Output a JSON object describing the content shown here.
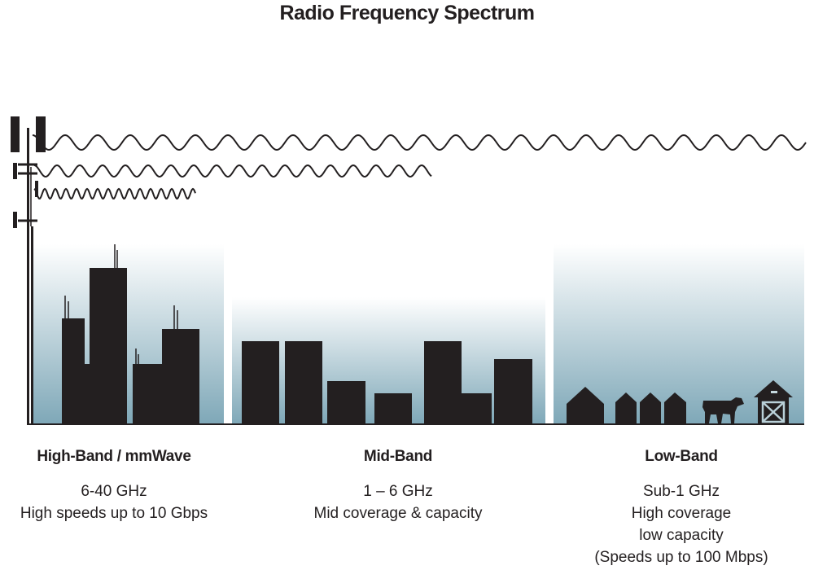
{
  "title": "Radio Frequency Spectrum",
  "colors": {
    "ink": "#231f20",
    "sky_bottom": "#7fa8b8",
    "sky_top": "#ffffff"
  },
  "bands": [
    {
      "name": "High-Band / mmWave",
      "lines": [
        "6-40 GHz",
        "High speeds up to 10 Gbps"
      ]
    },
    {
      "name": "Mid-Band",
      "lines": [
        "1 – 6 GHz",
        "Mid coverage & capacity"
      ]
    },
    {
      "name": "Low-Band",
      "lines": [
        "Sub-1 GHz",
        "High coverage",
        "low capacity",
        "(Speeds up to 100 Mbps)"
      ]
    }
  ],
  "icons": [
    "cell-tower-icon",
    "skyscraper-icon",
    "building-icon",
    "house-icon",
    "cow-icon",
    "barn-icon",
    "radio-wave-icon"
  ]
}
